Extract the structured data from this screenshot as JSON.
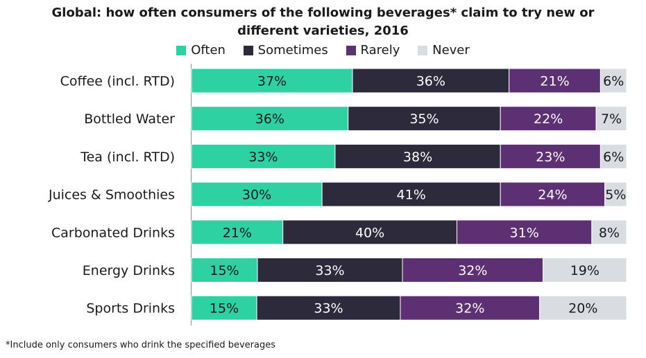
{
  "chart_data": {
    "type": "bar",
    "orientation": "horizontal",
    "stacked": true,
    "title_lines": [
      "Global: how often consumers of the following beverages* claim to try new or",
      "different varieties, 2016"
    ],
    "categories": [
      "Coffee (incl. RTD)",
      "Bottled Water",
      "Tea (incl. RTD)",
      "Juices & Smoothies",
      "Carbonated Drinks",
      "Energy Drinks",
      "Sports Drinks"
    ],
    "series": [
      {
        "name": "Often",
        "color": "#2ed1a2",
        "values": [
          37,
          36,
          33,
          30,
          21,
          15,
          15
        ]
      },
      {
        "name": "Sometimes",
        "color": "#2d2a3b",
        "values": [
          36,
          35,
          38,
          41,
          40,
          33,
          33
        ]
      },
      {
        "name": "Rarely",
        "color": "#5d2f73",
        "values": [
          21,
          22,
          23,
          24,
          31,
          32,
          32
        ]
      },
      {
        "name": "Never",
        "color": "#d9dde1",
        "values": [
          6,
          7,
          6,
          5,
          8,
          19,
          20
        ]
      }
    ],
    "value_suffix": "%",
    "legend_position": "top",
    "grid": false
  },
  "footnote": "*Include only consumers who drink the specified beverages"
}
